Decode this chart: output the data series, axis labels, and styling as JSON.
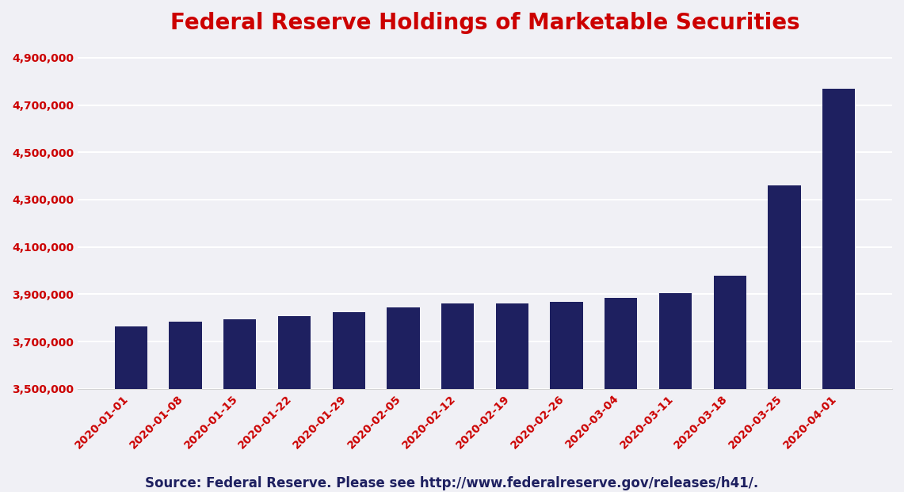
{
  "title": "Federal Reserve Holdings of Marketable Securities",
  "source_text": "Source: Federal Reserve. Please see http://www.federalreserve.gov/releases/h41/.",
  "categories": [
    "2020-01-01",
    "2020-01-08",
    "2020-01-15",
    "2020-01-22",
    "2020-01-29",
    "2020-02-05",
    "2020-02-12",
    "2020-02-19",
    "2020-02-26",
    "2020-03-04",
    "2020-03-11",
    "2020-03-18",
    "2020-03-25",
    "2020-04-01"
  ],
  "values": [
    3763000,
    3783000,
    3793000,
    3808000,
    3826000,
    3845000,
    3860000,
    3862000,
    3868000,
    3886000,
    3905000,
    3979000,
    4360000,
    4770000
  ],
  "bar_color": "#1e2060",
  "background_color": "#f0f0f5",
  "title_color": "#cc0000",
  "title_fontsize": 20,
  "ylim_min": 3500000,
  "ylim_max": 4950000,
  "ytick_vals": [
    3500000,
    3700000,
    3900000,
    4100000,
    4300000,
    4500000,
    4700000,
    4900000
  ],
  "tick_label_color": "#cc0000",
  "source_fontsize": 12,
  "source_color": "#1e2060",
  "bar_width": 0.6,
  "grid_color": "#ffffff",
  "grid_linewidth": 1.5
}
